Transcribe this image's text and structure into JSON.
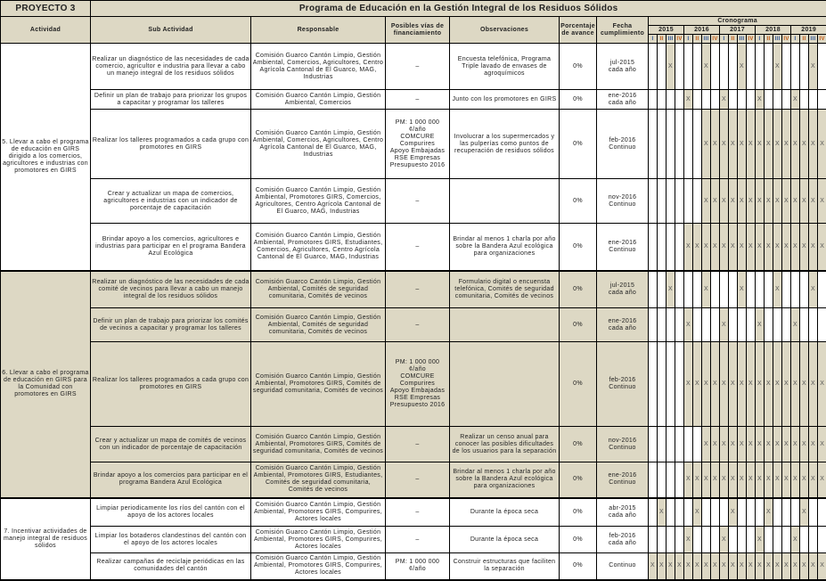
{
  "project": {
    "label": "PROYECTO 3",
    "title": "Programa de Educación en la Gestión Integral de los Residuos Sólidos"
  },
  "headers": {
    "actividad": "Actividad",
    "sub_actividad": "Sub Actividad",
    "responsable": "Responsable",
    "financiamiento": "Posibles vías de financiamiento",
    "observaciones": "Observaciones",
    "porcentaje": "Porcentaje de avance",
    "fecha": "Fecha cumplimiento",
    "cronograma": "Cronograma",
    "years": [
      "2015",
      "2016",
      "2017",
      "2018",
      "2019"
    ],
    "quarters": [
      "I",
      "II",
      "III",
      "IV"
    ]
  },
  "colors": {
    "header_bg": "#ddd8c4",
    "group_bg": "#ddd8c4",
    "scheduled_cell": "#ddd8c4"
  },
  "schedule_mark": "X",
  "groups": [
    {
      "actividad": "5. Llevar a cabo el programa de educación en GIRS dirigido a los comercios, agricultores e industrias con promotores en GIRS",
      "shaded": false,
      "rows": [
        {
          "sub": "Realizar un diagnóstico de las necesidades de cada comercio, agricultor e industria para llevar a cabo un manejo integral de los residuos sólidos",
          "resp": "Comisión Guarco Cantón Limpio, Gestión Ambiental, Comercios, Agricultores, Centro Agrícola Cantonal de El Guarco, MAG, Industrias",
          "fin": "–",
          "obs": "Encuesta telefónica, Programa Triple lavado de envases de agroquímicos",
          "pct": "0%",
          "fecha": "jul-2015\ncada año",
          "schedule": [
            2,
            6,
            10,
            14,
            18
          ]
        },
        {
          "sub": "Definir un plan de trabajo para priorizar los grupos a capacitar y programar los talleres",
          "resp": "Comisión Guarco Cantón Limpio, Gestión Ambiental, Comercios",
          "fin": "–",
          "obs": "Junto con los promotores en GIRS",
          "pct": "0%",
          "fecha": "ene-2016\ncada año",
          "schedule": [
            4,
            8,
            12,
            16
          ]
        },
        {
          "sub": "Realizar los talleres programados a cada grupo con promotores en GIRS",
          "resp": "Comisión Guarco Cantón Limpio, Gestión Ambiental, Comercios, Agricultores, Centro Agrícola Cantonal de El Guarco, MAG, Industrias",
          "fin": "PM: 1 000 000\n¢/año\nCOMCURE\nCompurires\nApoyo Embajadas\nRSE Empresas\nPresupuesto 2016",
          "obs": "Involucrar a los supermercados y las pulperías como puntos de recuperación de residuos sólidos",
          "pct": "0%",
          "fecha": "feb-2016\nContinuo",
          "schedule": [
            6,
            7,
            8,
            9,
            10,
            11,
            12,
            13,
            14,
            15,
            16,
            17,
            18,
            19
          ]
        },
        {
          "sub": "Crear y actualizar un mapa de comercios, agricultores e industrias con un indicador de porcentaje de capacitación",
          "resp": "Comisión Guarco Cantón Limpio, Gestión Ambiental, Promotores GIRS, Comercios, Agricultores, Centro Agrícola Cantonal de El Guarco, MAG, Industrias",
          "fin": "–",
          "obs": "",
          "pct": "0%",
          "fecha": "nov-2016\nContinuo",
          "schedule": [
            6,
            7,
            8,
            9,
            10,
            11,
            12,
            13,
            14,
            15,
            16,
            17,
            18,
            19
          ]
        },
        {
          "sub": "Brindar apoyo a los comercios, agricultores e industrias para participar en el programa Bandera Azul Ecológica",
          "resp": "Comisión Guarco Cantón Limpio, Gestión Ambiental, Promotores GIRS, Estudiantes, Comercios, Agricultores, Centro Agrícola Cantonal de El Guarco, MAG, Industrias",
          "fin": "–",
          "obs": "Brindar al menos 1 charla por año sobre la Bandera Azul ecológica para organizaciones",
          "pct": "0%",
          "fecha": "ene-2016\nContinuo",
          "schedule": [
            4,
            5,
            6,
            7,
            8,
            9,
            10,
            11,
            12,
            13,
            14,
            15,
            16,
            17,
            18,
            19
          ]
        }
      ]
    },
    {
      "actividad": "6. Llevar a cabo el programa de educación en GIRS para la Comunidad con promotores en GIRS",
      "shaded": true,
      "rows": [
        {
          "sub": "Realizar un diagnóstico de las necesidades de cada comité de vecinos para llevar a cabo un manejo integral de los residuos sólidos",
          "resp": "Comisión Guarco Cantón Limpio, Gestión Ambiental, Comités de seguridad comunitaria, Comités de vecinos",
          "fin": "–",
          "obs": "Formulario digital o encuensta telefónica, Comités de seguridad comunitaria, Comités de vecinos",
          "pct": "0%",
          "fecha": "jul-2015\ncada año",
          "schedule": [
            2,
            6,
            10,
            14,
            18
          ]
        },
        {
          "sub": "Definir un plan de trabajo para priorizar los comités de vecinos a capacitar y programar los talleres",
          "resp": "Comisión Guarco Cantón Limpio, Gestión Ambiental, Comités de seguridad comunitaria, Comités de vecinos",
          "fin": "–",
          "obs": "",
          "pct": "0%",
          "fecha": "ene-2016\ncada año",
          "schedule": [
            4,
            8,
            12,
            16
          ]
        },
        {
          "sub": "Realizar los talleres programados a cada grupo con promotores en GIRS",
          "resp": "Comisión Guarco Cantón Limpio, Gestión Ambiental, Promotores GIRS, Comités de seguridad comunitaria, Comités de vecinos",
          "fin": "PM: 1 000 000\n¢/año\nCOMCURE\nCompurires\nApoyo Embajadas\nRSE Empresas\nPresupuesto 2016",
          "obs": "",
          "pct": "0%",
          "fecha": "feb-2016\nContinuo",
          "schedule": [
            4,
            5,
            6,
            7,
            8,
            9,
            10,
            11,
            12,
            13,
            14,
            15,
            16,
            17,
            18,
            19
          ]
        },
        {
          "sub": "Crear y actualizar un mapa de comités de vecinos con un indicador de porcentaje de capacitación",
          "resp": "Comisión Guarco Cantón Limpio, Gestión Ambiental, Promotores GIRS, Comités de seguridad comunitaria, Comités de vecinos",
          "fin": "–",
          "obs": "Realizar un censo anual para conocer las posibles dificultades de los usuarios para la separación",
          "pct": "0%",
          "fecha": "nov-2016\nContinuo",
          "schedule": [
            6,
            7,
            8,
            9,
            10,
            11,
            12,
            13,
            14,
            15,
            16,
            17,
            18,
            19
          ]
        },
        {
          "sub": "Brindar apoyo a los comercios para participar en el programa Bandera Azul Ecológica",
          "resp": "Comisión Guarco Cantón Limpio, Gestión Ambiental, Promotores GIRS, Estudiantes, Comités de seguridad comunitaria, Comités de vecinos",
          "fin": "–",
          "obs": "Brindar al menos 1 charla por año sobre la Bandera Azul ecológica para organizaciones",
          "pct": "0%",
          "fecha": "ene-2016\nContinuo",
          "schedule": [
            4,
            5,
            6,
            7,
            8,
            9,
            10,
            11,
            12,
            13,
            14,
            15,
            16,
            17,
            18,
            19
          ]
        }
      ]
    },
    {
      "actividad": "7. Incentivar actividades de manejo integral de residuos sólidos",
      "shaded": false,
      "rows": [
        {
          "sub": "Limpiar periodicamente los ríos del cantón con el apoyo de los actores locales",
          "resp": "Comisión Guarco Cantón Limpio, Gestión Ambiental, Promotores GIRS, Compurires, Actores locales",
          "fin": "–",
          "obs": "Durante la época seca",
          "pct": "0%",
          "fecha": "abr-2015\ncada año",
          "schedule": [
            1,
            5,
            9,
            13,
            17
          ]
        },
        {
          "sub": "Limpiar los botaderos clandestinos del cantón con el apoyo de los actores locales",
          "resp": "Comisión Guarco Cantón Limpio, Gestión Ambiental, Promotores GIRS, Compurires, Actores locales",
          "fin": "–",
          "obs": "Durante la época seca",
          "pct": "0%",
          "fecha": "feb-2016\ncada año",
          "schedule": [
            4,
            8,
            12,
            16
          ]
        },
        {
          "sub": "Realizar campañas de reciclaje periódicas en las comunidades del cantón",
          "resp": "Comisión Guarco Cantón Limpio, Gestión Ambiental, Promotores GIRS, Compurires, Actores locales",
          "fin": "PM: 1 000 000\n¢/año",
          "obs": "Construir estructuras que faciliten la separación",
          "pct": "0%",
          "fecha": "Continuo",
          "schedule": [
            0,
            1,
            2,
            3,
            4,
            5,
            6,
            7,
            8,
            9,
            10,
            11,
            12,
            13,
            14,
            15,
            16,
            17,
            18,
            19
          ]
        }
      ]
    }
  ]
}
